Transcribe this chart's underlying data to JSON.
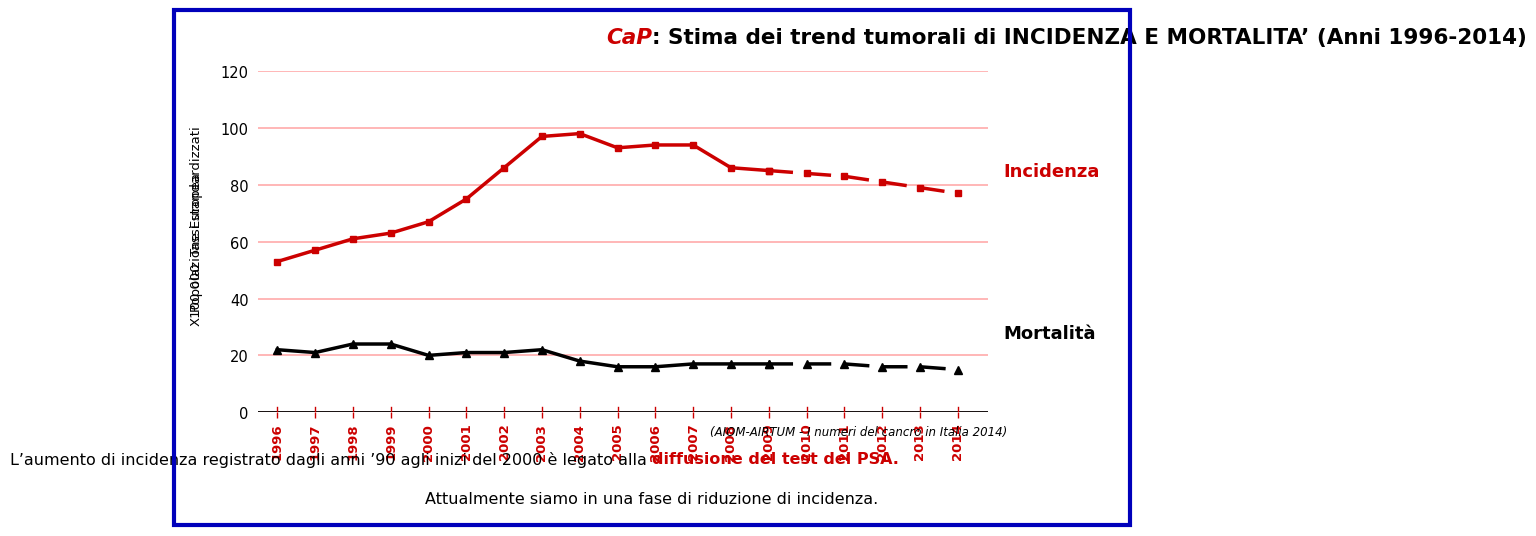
{
  "title_cap": "CaP",
  "title_rest": ": Stima dei trend tumorali di INCIDENZA E MORTALITA’ (Anni 1996-2014)",
  "ylabel_line1": "Tassi standardizzati",
  "ylabel_line2": "Popolazione Europea",
  "ylabel_line3": "X100.000",
  "years_solid": [
    1996,
    1997,
    1998,
    1999,
    2000,
    2001,
    2002,
    2003,
    2004,
    2005,
    2006,
    2007,
    2008,
    2009
  ],
  "years_dashed": [
    2009,
    2010,
    2011,
    2012,
    2013,
    2014
  ],
  "incidenza_solid": [
    53,
    57,
    61,
    63,
    67,
    75,
    86,
    97,
    98,
    93,
    94,
    94,
    86,
    85
  ],
  "incidenza_dashed": [
    85,
    84,
    83,
    81,
    79,
    77
  ],
  "mortalita_solid": [
    22,
    21,
    24,
    24,
    20,
    21,
    21,
    22,
    18,
    16,
    16,
    17,
    17,
    17
  ],
  "mortalita_dashed": [
    17,
    17,
    17,
    16,
    16,
    15
  ],
  "incidenza_color": "#cc0000",
  "mortalita_color": "#000000",
  "grid_color": "#ffaaaa",
  "background_color": "#ffffff",
  "ylim": [
    0,
    120
  ],
  "yticks": [
    0,
    20,
    40,
    60,
    80,
    100,
    120
  ],
  "all_years": [
    1996,
    1997,
    1998,
    1999,
    2000,
    2001,
    2002,
    2003,
    2004,
    2005,
    2006,
    2007,
    2008,
    2009,
    2010,
    2011,
    2012,
    2013,
    2014
  ],
  "label_incidenza": "Incidenza",
  "label_mortalita": "Mortalità",
  "source_text": "(AIOM-AIRTUM - I numeri del cancro in Italia 2014)",
  "bottom_text1_pre": "L’aumento di incidenza registrato dagli anni ’90 agli inizi del 2000 è legato alla ",
  "bottom_text1_highlight": "diffusione del test del PSA",
  "bottom_text1_post": ".",
  "bottom_text2": "Attualmente siamo in una fase di riduzione di incidenza.",
  "border_color": "#0000bb"
}
